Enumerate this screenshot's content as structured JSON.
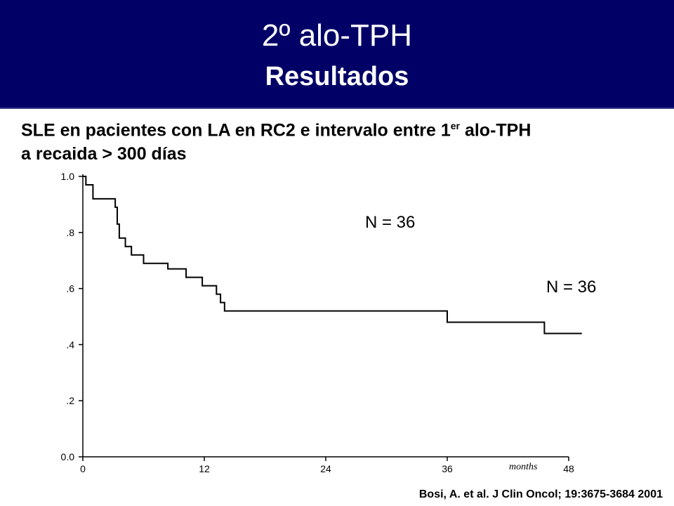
{
  "header": {
    "title": "2º alo-TPH",
    "subtitle": "Resultados"
  },
  "description": {
    "line1_prefix": "SLE en pacientes con LA en RC2 e intervalo entre 1",
    "line1_sup": "er",
    "line1_suffix": " alo-TPH",
    "line2": "a recaida > 300 días"
  },
  "chart_data": {
    "type": "line",
    "step": true,
    "xlabel": "months",
    "ylabel": "",
    "xlim": [
      0,
      48
    ],
    "ylim": [
      0,
      1
    ],
    "x_ticks": [
      0,
      12,
      24,
      36,
      48
    ],
    "x_tick_labels": [
      "0",
      "12",
      "24",
      "36",
      "48"
    ],
    "y_ticks": [
      0,
      0.2,
      0.4,
      0.6,
      0.8,
      1.0
    ],
    "y_tick_labels": [
      "0.0",
      ".2",
      ".4",
      ".6",
      ".8",
      "1.0"
    ],
    "grid": false,
    "series": [
      {
        "x": [
          0,
          0.3,
          0.6,
          1.0,
          3.0,
          3.2,
          3.4,
          3.6,
          4.2,
          4.8,
          5.4,
          6.0,
          8.4,
          10.2,
          11.8,
          13.2,
          13.6,
          14.0,
          36.0,
          45.6,
          49.3
        ],
        "y": [
          1.0,
          0.97,
          0.97,
          0.92,
          0.92,
          0.89,
          0.83,
          0.78,
          0.75,
          0.72,
          0.72,
          0.69,
          0.67,
          0.64,
          0.61,
          0.58,
          0.55,
          0.52,
          0.48,
          0.44,
          0.44
        ]
      }
    ],
    "annotations": [
      "N = 36",
      "N = 36"
    ]
  },
  "citation": "Bosi, A. et al. J Clin Oncol; 19:3675-3684 2001",
  "colors": {
    "header_bg": "#000066",
    "header_text": "#ffffff",
    "line": "#000000"
  }
}
